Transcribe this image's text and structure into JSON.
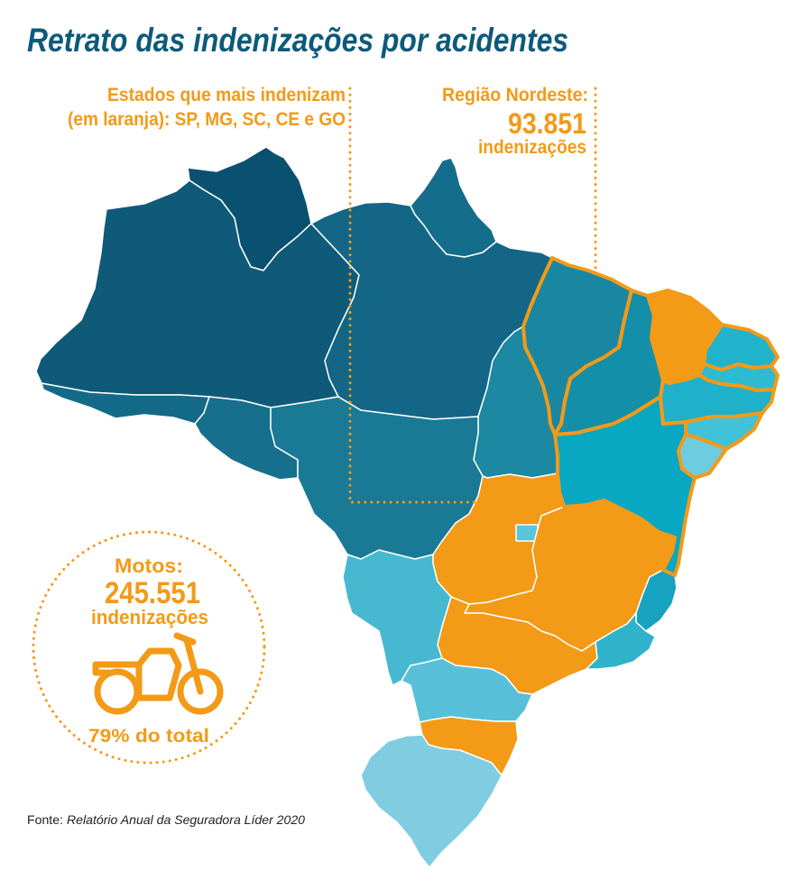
{
  "title": "Retrato das indenizações por acidentes",
  "callouts": {
    "top_states": {
      "line1": "Estados que mais indenizam",
      "line2": "(em laranja): SP, MG, SC, CE e GO"
    },
    "nordeste": {
      "label": "Região Nordeste:",
      "value": "93.851",
      "unit": "indenizações"
    }
  },
  "motos": {
    "label": "Motos:",
    "value": "245.551",
    "unit": "indenizações",
    "share": "79% do total",
    "icon": "motorcycle-icon"
  },
  "source": {
    "prefix": "Fonte:",
    "text": "Relatório Anual da Seguradora Líder 2020"
  },
  "colors": {
    "accent_orange": "#f39a17",
    "title": "#0d5a7a",
    "text": "#222222"
  },
  "map": {
    "border_color": "#ffffff",
    "nordeste_outline_color": "#f39a17",
    "fills": {
      "RR": "#0a5071",
      "AM": "#0f5a79",
      "AC": "#136a88",
      "RO": "#166f8d",
      "PA": "#136685",
      "AP": "#146d8b",
      "MT": "#1a7995",
      "TO": "#1c88a2",
      "MS": "#46b9d0",
      "GO": "#f39a17",
      "DF": "#5cc4da",
      "MG": "#f39a17",
      "SP": "#f39a17",
      "ES": "#17a2bf",
      "RJ": "#30b2cb",
      "PR": "#57c0d8",
      "SC": "#f39a17",
      "RS": "#80cde2",
      "MA": "#1987a2",
      "PI": "#148fa9",
      "CE": "#f39a17",
      "RN": "#22b3cc",
      "PB": "#2ebbd2",
      "PE": "#1fb0ca",
      "AL": "#42c2d8",
      "SE": "#6dccdf",
      "BA": "#08a7c2"
    },
    "nordeste": {
      "MA": true,
      "PI": true,
      "CE": true,
      "RN": true,
      "PB": true,
      "PE": true,
      "AL": true,
      "SE": true,
      "BA": true
    }
  }
}
